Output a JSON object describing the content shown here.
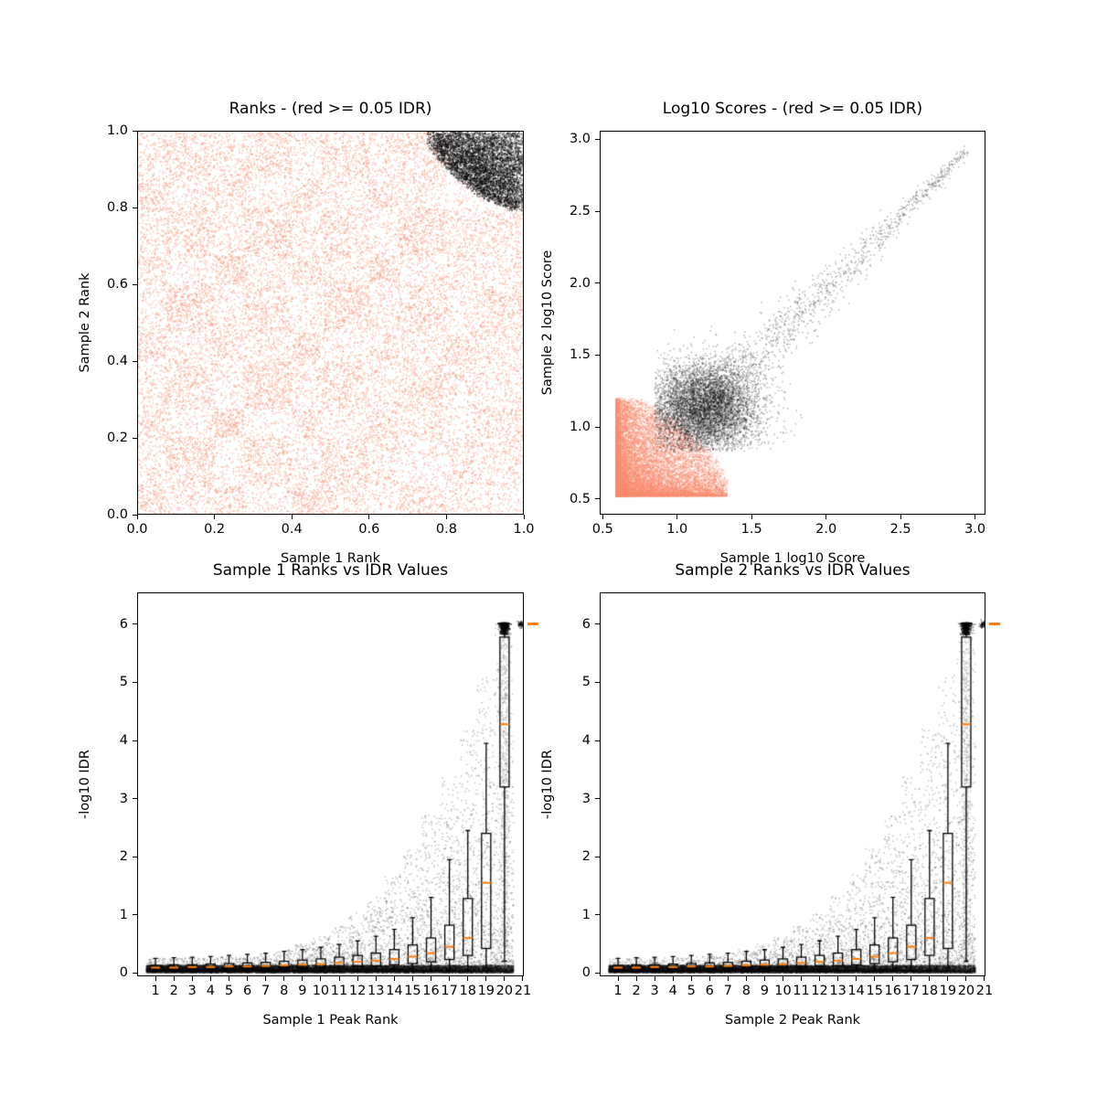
{
  "figure_meta": {
    "kind": "matplotlib-style 2x2 IDR diagnostic figure",
    "background": "#ffffff",
    "text_color": "#000000",
    "spine_color": "#000000"
  },
  "chart_data": [
    {
      "id": "ranks",
      "type": "scatter",
      "title": "Ranks - (red >= 0.05 IDR)",
      "xlabel": "Sample 1 Rank",
      "ylabel": "Sample 2 Rank",
      "xlim": [
        0,
        1
      ],
      "ylim": [
        0,
        1
      ],
      "grid": false,
      "xticks": [
        0,
        0.2,
        0.4,
        0.6,
        0.8,
        1.0
      ],
      "xtick_labels": [
        "0.0",
        "0.2",
        "0.4",
        "0.6",
        "0.8",
        "1.0"
      ],
      "yticks": [
        0,
        0.2,
        0.4,
        0.6,
        0.8,
        1.0
      ],
      "ytick_labels": [
        "0.0",
        "0.2",
        "0.4",
        "0.6",
        "0.8",
        "1.0"
      ],
      "series": [
        {
          "name": "insignificant-peaks-red-idr-ge-0.05",
          "color": "#f98b6e",
          "alpha": 0.5,
          "size": 1.5,
          "seed": 11,
          "model": {
            "kind": "checkerboard",
            "n": 46000,
            "edges": [
              0,
              0.075,
              0.2,
              0.275,
              0.4,
              0.475,
              0.6,
              0.675,
              0.8,
              0.875,
              1.0
            ],
            "weights": [
              [
                1.6,
                0.9,
                1.4,
                0.7,
                1.5,
                1.0,
                0.6,
                1.2,
                0.8,
                0.5
              ],
              [
                0.9,
                1.5,
                0.5,
                1.3,
                0.8,
                1.4,
                1.0,
                0.6,
                1.3,
                0.8
              ],
              [
                1.3,
                0.7,
                2.0,
                0.5,
                1.2,
                0.8,
                1.5,
                1.0,
                0.6,
                1.1
              ],
              [
                0.8,
                1.2,
                0.6,
                1.6,
                0.9,
                1.3,
                0.7,
                1.4,
                1.0,
                0.7
              ],
              [
                1.5,
                0.8,
                1.3,
                0.9,
                1.7,
                0.6,
                1.2,
                0.8,
                1.4,
                0.9
              ],
              [
                0.7,
                1.6,
                0.8,
                1.2,
                0.6,
                1.5,
                0.9,
                1.3,
                0.7,
                1.2
              ],
              [
                1.2,
                0.6,
                1.7,
                0.8,
                1.3,
                0.9,
                1.6,
                0.7,
                1.1,
                0.8
              ],
              [
                0.9,
                1.3,
                0.7,
                1.5,
                0.8,
                1.2,
                0.6,
                1.5,
                0.9,
                1.0
              ],
              [
                1.4,
                0.8,
                1.2,
                0.6,
                1.4,
                0.7,
                1.3,
                0.9,
                0.4,
                0.3
              ],
              [
                0.8,
                1.2,
                0.9,
                1.3,
                0.7,
                1.1,
                0.8,
                1.2,
                0.3,
                0.2
              ]
            ],
            "max_weight": 2.2,
            "exclude_corner_radius": 0.17
          }
        },
        {
          "name": "significant-peaks-black-idr-lt-0.05",
          "color": "#000000",
          "alpha": 0.5,
          "size": 1.5,
          "seed": 12,
          "model": {
            "kind": "corner_fan",
            "n": 9000,
            "rx": 0.25,
            "ry": 0.21,
            "shape_power": 1.5,
            "density_power": 0.8,
            "edge_noise": 0.15
          }
        }
      ]
    },
    {
      "id": "log10_scores",
      "type": "scatter",
      "title": "Log10 Scores - (red >= 0.05 IDR)",
      "xlabel": "Sample 1 log10 Score",
      "ylabel": "Sample 2 log10 Score",
      "xlim": [
        0.48,
        3.07
      ],
      "ylim": [
        0.39,
        3.06
      ],
      "grid": false,
      "xticks": [
        0.5,
        1.0,
        1.5,
        2.0,
        2.5,
        3.0
      ],
      "xtick_labels": [
        "0.5",
        "1.0",
        "1.5",
        "2.0",
        "2.5",
        "3.0"
      ],
      "yticks": [
        0.5,
        1.0,
        1.5,
        2.0,
        2.5,
        3.0
      ],
      "ytick_labels": [
        "0.5",
        "1.0",
        "1.5",
        "2.0",
        "2.5",
        "3.0"
      ],
      "series": [
        {
          "name": "insignificant-scores-red",
          "color": "#f98b6e",
          "alpha": 0.45,
          "size": 1.5,
          "seed": 21,
          "model": {
            "kind": "corner_block",
            "x0": 0.59,
            "y0": 0.52,
            "wx": 0.75,
            "wy": 0.68,
            "power": 2.2,
            "round_power": 1.6,
            "edge_noise": 0.2,
            "n": 17000
          }
        },
        {
          "name": "significant-scores-black-core",
          "color": "#000000",
          "alpha": 0.3,
          "size": 1.5,
          "seed": 22,
          "model": {
            "kind": "blob",
            "cx": 1.17,
            "cy": 1.12,
            "sx": 0.19,
            "sy": 0.16,
            "xmin": 0.85,
            "ymin": 0.83,
            "n": 6500
          }
        },
        {
          "name": "significant-scores-black-tail",
          "color": "#000000",
          "alpha": 0.3,
          "size": 1.5,
          "seed": 23,
          "model": {
            "kind": "comet_tail",
            "x0": 1.25,
            "y0": 1.2,
            "dx": 1.7,
            "dy": 1.72,
            "spread": 0.09,
            "t_power": 2.0,
            "n": 1400
          }
        }
      ]
    },
    {
      "id": "sample1_rank_vs_idr",
      "type": "scatter",
      "title": "Sample 1 Ranks vs IDR Values",
      "xlabel": "Sample 1 Peak Rank",
      "ylabel": "-log10 IDR",
      "xlim": [
        0,
        21.05
      ],
      "ylim": [
        -0.06,
        6.55
      ],
      "grid": false,
      "xticks": [
        1,
        2,
        3,
        4,
        5,
        6,
        7,
        8,
        9,
        10,
        11,
        12,
        13,
        14,
        15,
        16,
        17,
        18,
        19,
        20,
        21
      ],
      "xtick_labels": [
        "1",
        "2",
        "3",
        "4",
        "5",
        "6",
        "7",
        "8",
        "9",
        "10",
        "11",
        "12",
        "13",
        "14",
        "15",
        "16",
        "17",
        "18",
        "19",
        "20",
        "21"
      ],
      "yticks": [
        0,
        1,
        2,
        3,
        4,
        5,
        6
      ],
      "ytick_labels": [
        "0",
        "1",
        "2",
        "3",
        "4",
        "5",
        "6"
      ],
      "series": [
        {
          "name": "idr-points",
          "color": "#000000",
          "alpha": 0.25,
          "size": 1.5,
          "seed": 31,
          "model": {
            "kind": "rank_idr",
            "ranks": 20,
            "n_per_rank": 1100,
            "band_y0": 0.02,
            "band_scale": 0.11,
            "band_power": 1.6,
            "tail_frac_base": 0.15,
            "tail_frac_amp": 0.4,
            "tail_frac_power": 2.5,
            "env_base": 0.25,
            "env_amp": 6.0,
            "env_power": 4.0,
            "tail_power": 3.0,
            "cap": 6.0,
            "streak": {
              "x": 20,
              "n": 800,
              "ymin": 0.4,
              "ymax": 6.0,
              "sx": 0.13
            },
            "blob": {
              "x": 20,
              "n": 700,
              "y": 6.02,
              "spread": 0.2,
              "sx": 0.12
            },
            "cap_points": {
              "x": 20.9,
              "n": 60,
              "y": 6.0,
              "sx": 0.08,
              "sy": 0.03
            }
          }
        }
      ],
      "boxplot": {
        "width": 0.5,
        "color": "#000000",
        "median_color": "#ff7f0e",
        "positions": [
          1,
          2,
          3,
          4,
          5,
          6,
          7,
          8,
          9,
          10,
          11,
          12,
          13,
          14,
          15,
          16,
          17,
          18,
          19,
          20
        ],
        "stats": [
          [
            0.01,
            0.05,
            0.09,
            0.13,
            0.25
          ],
          [
            0.01,
            0.05,
            0.09,
            0.14,
            0.26
          ],
          [
            0.01,
            0.06,
            0.1,
            0.14,
            0.27
          ],
          [
            0.01,
            0.06,
            0.1,
            0.15,
            0.28
          ],
          [
            0.01,
            0.06,
            0.11,
            0.16,
            0.3
          ],
          [
            0.01,
            0.07,
            0.11,
            0.17,
            0.32
          ],
          [
            0.02,
            0.07,
            0.12,
            0.18,
            0.34
          ],
          [
            0.02,
            0.08,
            0.13,
            0.2,
            0.37
          ],
          [
            0.02,
            0.08,
            0.14,
            0.22,
            0.4
          ],
          [
            0.02,
            0.09,
            0.15,
            0.24,
            0.44
          ],
          [
            0.02,
            0.1,
            0.17,
            0.27,
            0.49
          ],
          [
            0.02,
            0.11,
            0.19,
            0.3,
            0.55
          ],
          [
            0.03,
            0.12,
            0.21,
            0.34,
            0.63
          ],
          [
            0.03,
            0.14,
            0.24,
            0.4,
            0.75
          ],
          [
            0.03,
            0.16,
            0.28,
            0.48,
            0.95
          ],
          [
            0.03,
            0.19,
            0.34,
            0.6,
            1.3
          ],
          [
            0.04,
            0.23,
            0.45,
            0.82,
            1.95
          ],
          [
            0.04,
            0.3,
            0.6,
            1.28,
            2.45
          ],
          [
            0.08,
            0.42,
            1.55,
            2.4,
            3.95
          ],
          [
            0.2,
            3.2,
            4.28,
            5.78,
            6.02
          ]
        ],
        "overflow_median": {
          "position": 21,
          "value": 6.0
        }
      }
    },
    {
      "id": "sample2_rank_vs_idr",
      "type": "scatter",
      "title": "Sample 2 Ranks vs IDR Values",
      "xlabel": "Sample 2 Peak Rank",
      "ylabel": "-log10 IDR",
      "xlim": [
        0,
        21.05
      ],
      "ylim": [
        -0.06,
        6.55
      ],
      "grid": false,
      "xticks": [
        1,
        2,
        3,
        4,
        5,
        6,
        7,
        8,
        9,
        10,
        11,
        12,
        13,
        14,
        15,
        16,
        17,
        18,
        19,
        20,
        21
      ],
      "xtick_labels": [
        "1",
        "2",
        "3",
        "4",
        "5",
        "6",
        "7",
        "8",
        "9",
        "10",
        "11",
        "12",
        "13",
        "14",
        "15",
        "16",
        "17",
        "18",
        "19",
        "20",
        "21"
      ],
      "yticks": [
        0,
        1,
        2,
        3,
        4,
        5,
        6
      ],
      "ytick_labels": [
        "0",
        "1",
        "2",
        "3",
        "4",
        "5",
        "6"
      ],
      "series": [
        {
          "name": "idr-points",
          "color": "#000000",
          "alpha": 0.25,
          "size": 1.5,
          "seed": 41,
          "model": {
            "kind": "rank_idr",
            "ranks": 20,
            "n_per_rank": 1100,
            "band_y0": 0.02,
            "band_scale": 0.11,
            "band_power": 1.6,
            "tail_frac_base": 0.15,
            "tail_frac_amp": 0.4,
            "tail_frac_power": 2.5,
            "env_base": 0.25,
            "env_amp": 6.0,
            "env_power": 4.0,
            "tail_power": 3.0,
            "cap": 6.0,
            "streak": {
              "x": 20,
              "n": 800,
              "ymin": 0.4,
              "ymax": 6.0,
              "sx": 0.13
            },
            "blob": {
              "x": 20,
              "n": 700,
              "y": 6.02,
              "spread": 0.2,
              "sx": 0.12
            },
            "cap_points": {
              "x": 20.9,
              "n": 60,
              "y": 6.0,
              "sx": 0.08,
              "sy": 0.03
            }
          }
        }
      ],
      "boxplot": {
        "width": 0.5,
        "color": "#000000",
        "median_color": "#ff7f0e",
        "positions": [
          1,
          2,
          3,
          4,
          5,
          6,
          7,
          8,
          9,
          10,
          11,
          12,
          13,
          14,
          15,
          16,
          17,
          18,
          19,
          20
        ],
        "stats": [
          [
            0.01,
            0.05,
            0.09,
            0.13,
            0.25
          ],
          [
            0.01,
            0.05,
            0.09,
            0.14,
            0.26
          ],
          [
            0.01,
            0.06,
            0.1,
            0.14,
            0.27
          ],
          [
            0.01,
            0.06,
            0.1,
            0.15,
            0.28
          ],
          [
            0.01,
            0.06,
            0.11,
            0.16,
            0.3
          ],
          [
            0.01,
            0.07,
            0.11,
            0.17,
            0.32
          ],
          [
            0.02,
            0.07,
            0.12,
            0.18,
            0.34
          ],
          [
            0.02,
            0.08,
            0.13,
            0.2,
            0.37
          ],
          [
            0.02,
            0.08,
            0.14,
            0.22,
            0.4
          ],
          [
            0.02,
            0.09,
            0.15,
            0.24,
            0.44
          ],
          [
            0.02,
            0.1,
            0.17,
            0.27,
            0.49
          ],
          [
            0.02,
            0.11,
            0.19,
            0.3,
            0.55
          ],
          [
            0.03,
            0.12,
            0.21,
            0.34,
            0.63
          ],
          [
            0.03,
            0.14,
            0.24,
            0.4,
            0.75
          ],
          [
            0.03,
            0.16,
            0.28,
            0.48,
            0.95
          ],
          [
            0.03,
            0.19,
            0.34,
            0.6,
            1.3
          ],
          [
            0.04,
            0.23,
            0.45,
            0.82,
            1.95
          ],
          [
            0.04,
            0.3,
            0.6,
            1.28,
            2.45
          ],
          [
            0.08,
            0.42,
            1.55,
            2.4,
            3.95
          ],
          [
            0.2,
            3.2,
            4.28,
            5.78,
            6.02
          ]
        ],
        "overflow_median": {
          "position": 21,
          "value": 6.0
        }
      }
    }
  ]
}
